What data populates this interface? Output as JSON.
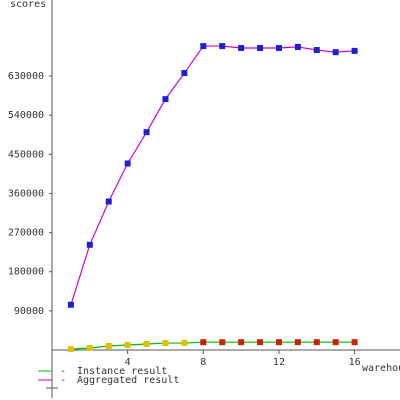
{
  "chart_data": {
    "type": "line",
    "y_label": "scores",
    "x_label": "warehouses",
    "xlim": [
      0,
      18.4
    ],
    "xticks": [
      4,
      8,
      12,
      16
    ],
    "ylim": [
      0,
      805000
    ],
    "yticks": [
      90000,
      180000,
      270000,
      360000,
      450000,
      540000,
      630000
    ],
    "x": [
      1,
      2,
      3,
      4,
      5,
      6,
      7,
      8,
      9,
      10,
      11,
      12,
      13,
      14,
      15,
      16
    ],
    "series": [
      {
        "name": "Instance result",
        "color": "#00c000",
        "marker_colors": [
          "#e0c000",
          "#e0c000",
          "#e0c000",
          "#e0c000",
          "#e0c000",
          "#e0c000",
          "#e0c000",
          "#d02000",
          "#d02000",
          "#d02000",
          "#d02000",
          "#d02000",
          "#d02000",
          "#d02000",
          "#d02000",
          "#d02000"
        ],
        "values": [
          2000,
          4600,
          9200,
          11500,
          13800,
          16000,
          16000,
          18000,
          18000,
          18000,
          18000,
          18000,
          18000,
          18000,
          18000,
          18000
        ]
      },
      {
        "name": "Aggregated result",
        "color": "#d000d0",
        "marker_colors": [
          "#2020d0",
          "#2020d0",
          "#2020d0",
          "#2020d0",
          "#2020d0",
          "#2020d0",
          "#2020d0",
          "#2020d0",
          "#2020d0",
          "#2020d0",
          "#2020d0",
          "#2020d0",
          "#2020d0",
          "#2020d0",
          "#2020d0",
          "#2020d0"
        ],
        "values": [
          104000,
          242000,
          341500,
          429000,
          501000,
          577000,
          637000,
          699000,
          699000,
          694600,
          694600,
          694600,
          697000,
          690000,
          685000,
          688000
        ]
      }
    ]
  }
}
